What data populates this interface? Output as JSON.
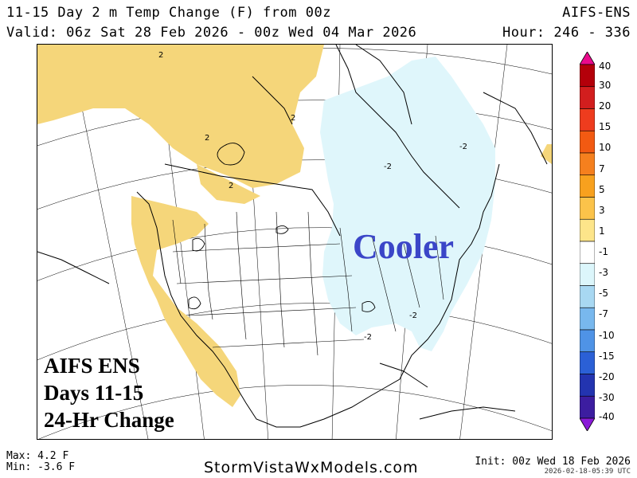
{
  "header": {
    "title": "11-15 Day 2 m Temp Change (F) from 00z",
    "model": "AIFS-ENS",
    "valid": "Valid: 06z Sat 28 Feb 2026 - 00z Wed 04 Mar 2026",
    "hour": "Hour: 246 - 336"
  },
  "map": {
    "big_label": "Cooler",
    "big_label_color": "#3b46c8",
    "text_box": [
      "AIFS ENS",
      "Days 11-15",
      "24-Hr Change"
    ],
    "contour_labels": [
      "2",
      "2",
      "2",
      "2",
      "-2",
      "-2",
      "-2",
      "-2"
    ],
    "warm_shade_color": "#f5d67a",
    "cool_shade_color": "#dff6fb"
  },
  "colorbar": {
    "labels": [
      "40",
      "30",
      "20",
      "15",
      "10",
      "7",
      "5",
      "3",
      "1",
      "-1",
      "-3",
      "-5",
      "-7",
      "-10",
      "-15",
      "-20",
      "-30",
      "-40"
    ],
    "colors": [
      "#ea0a8c",
      "#b4000a",
      "#d21e1e",
      "#ee3c1e",
      "#f25a12",
      "#f5801e",
      "#f8a11e",
      "#fbc34a",
      "#fde58a",
      "#ffffff",
      "#dcf6fb",
      "#a8d8f2",
      "#78b8ee",
      "#4f93e6",
      "#2b60d6",
      "#2334b0",
      "#3c1da0",
      "#8a1ad8"
    ]
  },
  "footer": {
    "max": "Max: 4.2 F",
    "min": "Min: -3.6 F",
    "site": "StormVistaWxModels.com",
    "init": "Init: 00z Wed 18 Feb 2026",
    "stamp": "2026-02-18-05:39 UTC"
  }
}
